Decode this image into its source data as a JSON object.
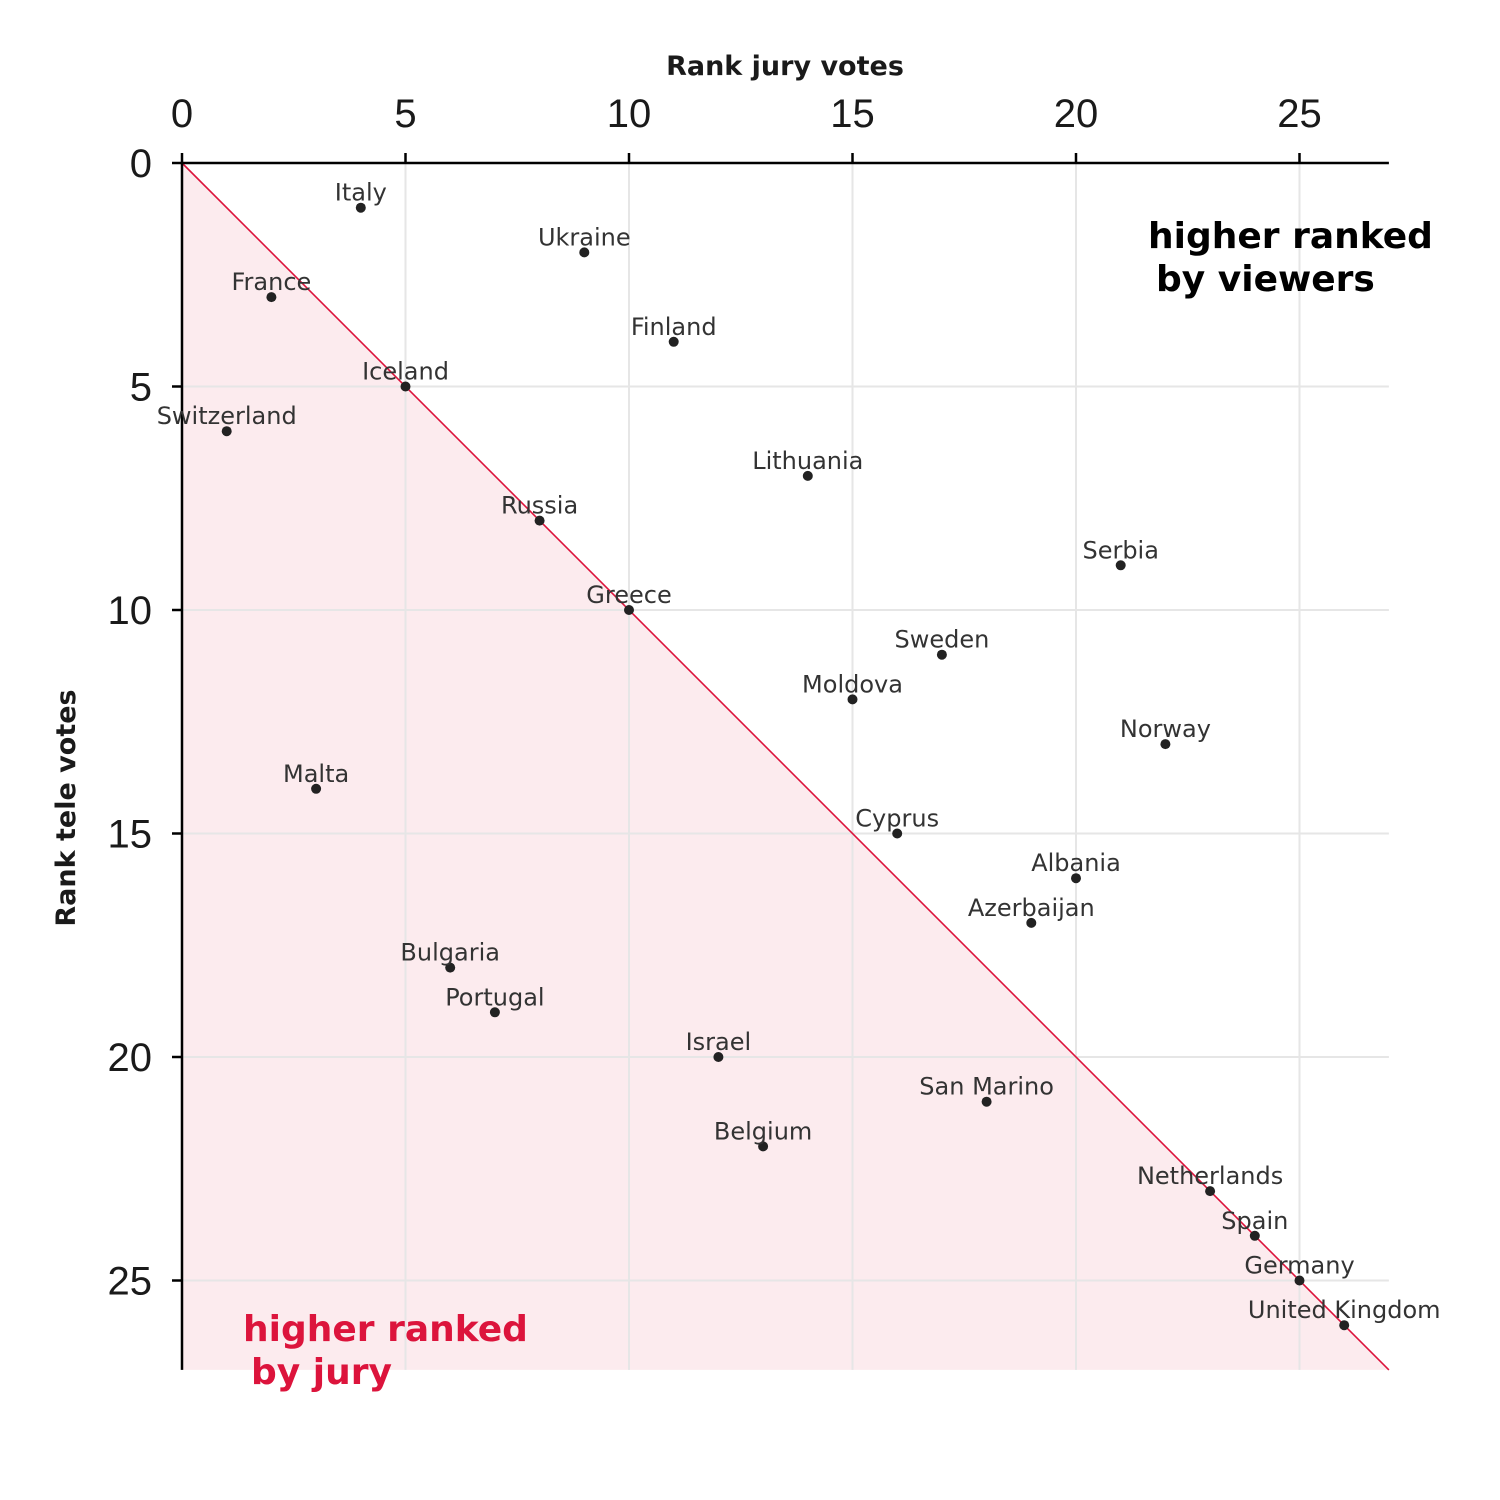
{
  "chart_data": {
    "type": "scatter",
    "xlabel": "Rank jury votes",
    "ylabel": "Rank tele votes",
    "xlim": [
      0,
      27
    ],
    "ylim": [
      0,
      27
    ],
    "x_axis_position": "top",
    "y_axis_reversed": true,
    "x_ticks": [
      0,
      5,
      10,
      15,
      20,
      25
    ],
    "y_ticks": [
      0,
      5,
      10,
      15,
      20,
      25
    ],
    "grid": true,
    "diagonal": {
      "from": [
        0,
        0
      ],
      "to": [
        27,
        27
      ],
      "color": "#dc143c"
    },
    "shaded_region": {
      "color": "#fcebee",
      "below_diagonal": true
    },
    "annotations": [
      {
        "lines": [
          "higher ranked",
          "by viewers"
        ],
        "color": "#000000"
      },
      {
        "lines": [
          "higher ranked",
          "by jury"
        ],
        "color": "#dc143c"
      }
    ],
    "points": [
      {
        "label": "Italy",
        "x": 4,
        "y": 1
      },
      {
        "label": "Ukraine",
        "x": 9,
        "y": 2
      },
      {
        "label": "France",
        "x": 2,
        "y": 3
      },
      {
        "label": "Finland",
        "x": 11,
        "y": 4
      },
      {
        "label": "Iceland",
        "x": 5,
        "y": 5
      },
      {
        "label": "Switzerland",
        "x": 1,
        "y": 6
      },
      {
        "label": "Lithuania",
        "x": 14,
        "y": 7
      },
      {
        "label": "Russia",
        "x": 8,
        "y": 8
      },
      {
        "label": "Serbia",
        "x": 21,
        "y": 9
      },
      {
        "label": "Greece",
        "x": 10,
        "y": 10
      },
      {
        "label": "Sweden",
        "x": 17,
        "y": 11
      },
      {
        "label": "Moldova",
        "x": 15,
        "y": 12
      },
      {
        "label": "Norway",
        "x": 22,
        "y": 13
      },
      {
        "label": "Malta",
        "x": 3,
        "y": 14
      },
      {
        "label": "Cyprus",
        "x": 16,
        "y": 15
      },
      {
        "label": "Albania",
        "x": 20,
        "y": 16
      },
      {
        "label": "Azerbaijan",
        "x": 19,
        "y": 17
      },
      {
        "label": "Bulgaria",
        "x": 6,
        "y": 18
      },
      {
        "label": "Portugal",
        "x": 7,
        "y": 19
      },
      {
        "label": "Israel",
        "x": 12,
        "y": 20
      },
      {
        "label": "San Marino",
        "x": 18,
        "y": 21
      },
      {
        "label": "Belgium",
        "x": 13,
        "y": 22
      },
      {
        "label": "Netherlands",
        "x": 23,
        "y": 23
      },
      {
        "label": "Spain",
        "x": 24,
        "y": 24
      },
      {
        "label": "Germany",
        "x": 25,
        "y": 25
      },
      {
        "label": "United Kingdom",
        "x": 26,
        "y": 26
      }
    ]
  }
}
